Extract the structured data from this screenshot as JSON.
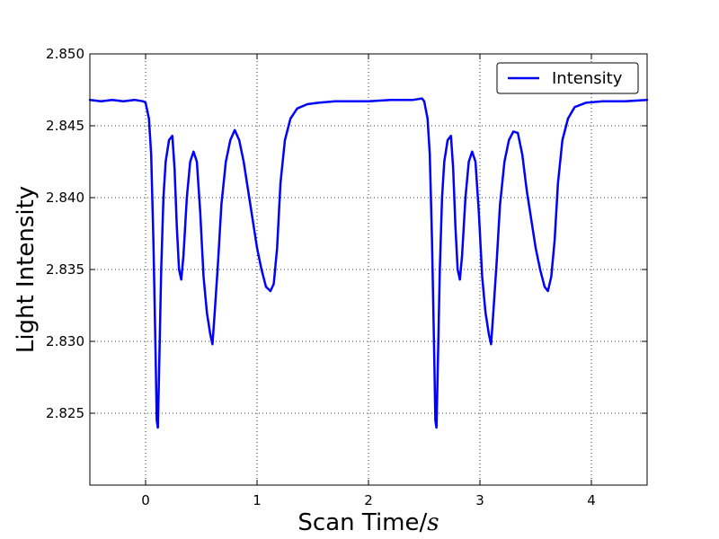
{
  "chart_data": {
    "type": "line",
    "title": "",
    "xlabel": "Scan Time/",
    "xlabel_unit": "s",
    "ylabel": "Light Intensity",
    "xlim": [
      -0.5,
      4.5
    ],
    "ylim": [
      2.82,
      2.85
    ],
    "x_ticks": [
      0,
      1,
      2,
      3,
      4
    ],
    "y_ticks": [
      2.825,
      2.83,
      2.835,
      2.84,
      2.845,
      2.85
    ],
    "x_tick_labels": [
      "0",
      "1",
      "2",
      "3",
      "4"
    ],
    "y_tick_labels": [
      "2.825",
      "2.830",
      "2.835",
      "2.840",
      "2.845",
      "2.850"
    ],
    "grid": true,
    "legend": {
      "position": "top-right",
      "entries": [
        "Intensity"
      ]
    },
    "series": [
      {
        "name": "Intensity",
        "color": "#0000ff",
        "points": [
          [
            -0.5,
            2.8468
          ],
          [
            -0.4,
            2.8467
          ],
          [
            -0.3,
            2.8468
          ],
          [
            -0.2,
            2.8467
          ],
          [
            -0.1,
            2.8468
          ],
          [
            -0.02,
            2.8467
          ],
          [
            0.0,
            2.8466
          ],
          [
            0.03,
            2.8455
          ],
          [
            0.05,
            2.843
          ],
          [
            0.07,
            2.837
          ],
          [
            0.09,
            2.829
          ],
          [
            0.1,
            2.8245
          ],
          [
            0.11,
            2.824
          ],
          [
            0.12,
            2.8275
          ],
          [
            0.14,
            2.835
          ],
          [
            0.16,
            2.84
          ],
          [
            0.18,
            2.8425
          ],
          [
            0.21,
            2.844
          ],
          [
            0.24,
            2.8443
          ],
          [
            0.26,
            2.842
          ],
          [
            0.28,
            2.838
          ],
          [
            0.3,
            2.835
          ],
          [
            0.32,
            2.8343
          ],
          [
            0.34,
            2.836
          ],
          [
            0.37,
            2.84
          ],
          [
            0.4,
            2.8425
          ],
          [
            0.43,
            2.8432
          ],
          [
            0.46,
            2.8425
          ],
          [
            0.49,
            2.839
          ],
          [
            0.52,
            2.8345
          ],
          [
            0.55,
            2.832
          ],
          [
            0.58,
            2.8305
          ],
          [
            0.6,
            2.8298
          ],
          [
            0.62,
            2.832
          ],
          [
            0.65,
            2.8355
          ],
          [
            0.68,
            2.8395
          ],
          [
            0.72,
            2.8425
          ],
          [
            0.76,
            2.844
          ],
          [
            0.8,
            2.8447
          ],
          [
            0.84,
            2.844
          ],
          [
            0.88,
            2.8425
          ],
          [
            0.92,
            2.8405
          ],
          [
            0.96,
            2.8385
          ],
          [
            1.0,
            2.8365
          ],
          [
            1.04,
            2.835
          ],
          [
            1.08,
            2.8338
          ],
          [
            1.12,
            2.8335
          ],
          [
            1.15,
            2.834
          ],
          [
            1.18,
            2.8365
          ],
          [
            1.21,
            2.841
          ],
          [
            1.25,
            2.844
          ],
          [
            1.3,
            2.8455
          ],
          [
            1.36,
            2.8462
          ],
          [
            1.45,
            2.8465
          ],
          [
            1.55,
            2.8466
          ],
          [
            1.7,
            2.8467
          ],
          [
            1.85,
            2.8467
          ],
          [
            2.0,
            2.8467
          ],
          [
            2.2,
            2.8468
          ],
          [
            2.4,
            2.8468
          ],
          [
            2.48,
            2.8469
          ],
          [
            2.5,
            2.8467
          ],
          [
            2.53,
            2.8455
          ],
          [
            2.55,
            2.843
          ],
          [
            2.57,
            2.837
          ],
          [
            2.59,
            2.829
          ],
          [
            2.6,
            2.8245
          ],
          [
            2.61,
            2.824
          ],
          [
            2.62,
            2.8275
          ],
          [
            2.64,
            2.835
          ],
          [
            2.66,
            2.84
          ],
          [
            2.68,
            2.8425
          ],
          [
            2.71,
            2.844
          ],
          [
            2.74,
            2.8443
          ],
          [
            2.76,
            2.842
          ],
          [
            2.78,
            2.838
          ],
          [
            2.8,
            2.835
          ],
          [
            2.82,
            2.8343
          ],
          [
            2.84,
            2.836
          ],
          [
            2.87,
            2.84
          ],
          [
            2.9,
            2.8425
          ],
          [
            2.93,
            2.8432
          ],
          [
            2.96,
            2.8425
          ],
          [
            2.99,
            2.839
          ],
          [
            3.02,
            2.8345
          ],
          [
            3.05,
            2.832
          ],
          [
            3.08,
            2.8305
          ],
          [
            3.1,
            2.8298
          ],
          [
            3.12,
            2.832
          ],
          [
            3.15,
            2.8355
          ],
          [
            3.18,
            2.8395
          ],
          [
            3.22,
            2.8425
          ],
          [
            3.26,
            2.844
          ],
          [
            3.3,
            2.8446
          ],
          [
            3.34,
            2.8445
          ],
          [
            3.38,
            2.843
          ],
          [
            3.42,
            2.8405
          ],
          [
            3.46,
            2.8385
          ],
          [
            3.5,
            2.8365
          ],
          [
            3.54,
            2.835
          ],
          [
            3.58,
            2.8338
          ],
          [
            3.61,
            2.8335
          ],
          [
            3.64,
            2.8345
          ],
          [
            3.67,
            2.837
          ],
          [
            3.7,
            2.841
          ],
          [
            3.74,
            2.844
          ],
          [
            3.79,
            2.8455
          ],
          [
            3.85,
            2.8463
          ],
          [
            3.95,
            2.8466
          ],
          [
            4.1,
            2.8467
          ],
          [
            4.3,
            2.8467
          ],
          [
            4.5,
            2.8468
          ]
        ]
      }
    ]
  }
}
